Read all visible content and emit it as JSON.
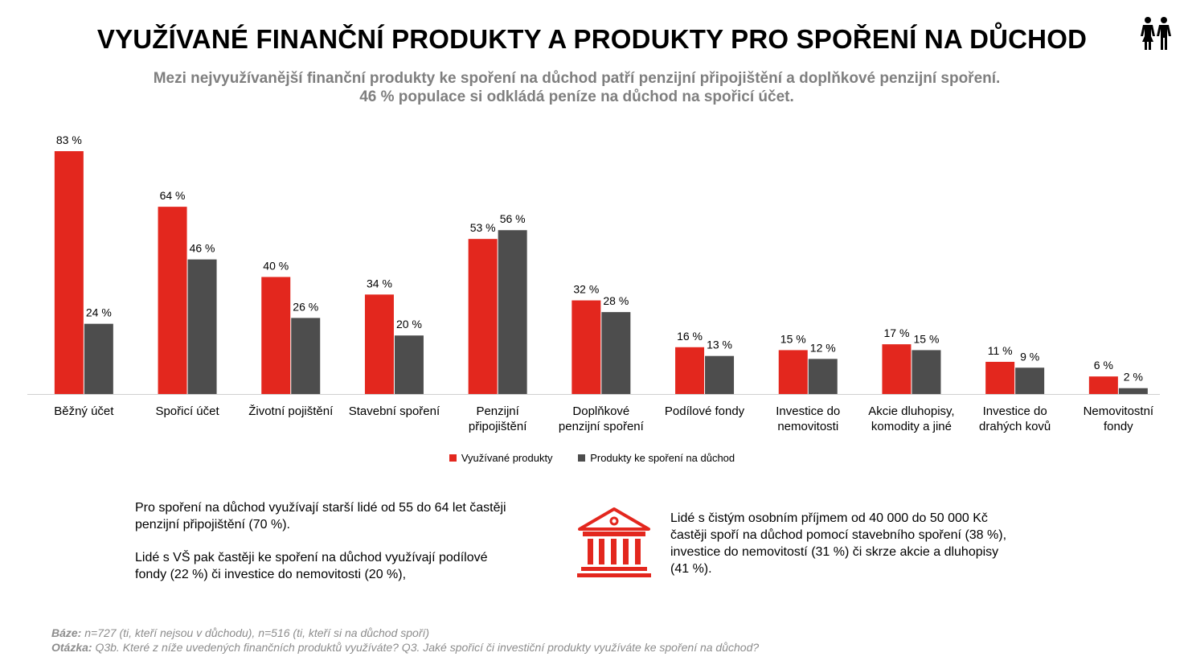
{
  "title": "VYUŽÍVANÉ FINANČNÍ PRODUKTY A PRODUKTY PRO SPOŘENÍ NA DŮCHOD",
  "subtitle_line1": "Mezi nejvyužívanější finanční produkty ke spoření na důchod patří penzijní připojištění a doplňkové penzijní spoření.",
  "subtitle_line2": "46 % populace si odkládá peníze na důchod na spořicí účet.",
  "header_icon": "people-icon",
  "colors": {
    "series1": "#e3271e",
    "series2": "#4d4d4d",
    "axis": "#d0d0d0",
    "subtitle": "#7f7f7f"
  },
  "chart_data": {
    "type": "bar",
    "categories": [
      [
        "Běžný účet"
      ],
      [
        "Spořicí účet"
      ],
      [
        "Životní pojištění"
      ],
      [
        "Stavební spoření"
      ],
      [
        "Penzijní",
        "připojištění"
      ],
      [
        "Doplňkové",
        "penzijní spoření"
      ],
      [
        "Podílové fondy"
      ],
      [
        "Investice do",
        "nemovitosti"
      ],
      [
        "Akcie dluhopisy,",
        "komodity a jiné"
      ],
      [
        "Investice do",
        "drahých kovů"
      ],
      [
        "Nemovitostní",
        "fondy"
      ]
    ],
    "series": [
      {
        "name": "Využívané produkty",
        "values": [
          83,
          64,
          40,
          34,
          53,
          32,
          16,
          15,
          17,
          11,
          6
        ],
        "color": "#e3271e"
      },
      {
        "name": "Produkty ke spoření na důchod",
        "values": [
          24,
          46,
          26,
          20,
          56,
          28,
          13,
          12,
          15,
          9,
          2
        ],
        "color": "#4d4d4d"
      }
    ],
    "value_suffix": " %",
    "ylim": [
      0,
      100
    ],
    "grid": false,
    "legend_position": "bottom"
  },
  "notes": {
    "left_p1": "Pro spoření na důchod využívají starší lidé od 55 do 64 let častěji penzijní připojištění (70 %).",
    "left_p2": "Lidé s VŠ pak častěji ke spoření na důchod využívají podílové fondy (22 %) či investice do nemovitosti (20 %),",
    "right_icon": "bank-icon",
    "right_p1": "Lidé s čistým osobním příjmem od 40 000 do 50 000 Kč častěji spoří na důchod pomocí stavebního spoření (38 %), investice do nemovitostí (31 %) či skrze akcie a dluhopisy (41 %)."
  },
  "footer": {
    "base_label": "Báze:",
    "base_text": " n=727 (ti, kteří nejsou v důchodu), n=516 (ti, kteří si na důchod spoří)",
    "question_label": "Otázka:",
    "question_text": " Q3b. Které z níže uvedených finančních produktů využíváte? Q3. Jaké spořicí či investiční produkty využíváte ke spoření na důchod?"
  }
}
